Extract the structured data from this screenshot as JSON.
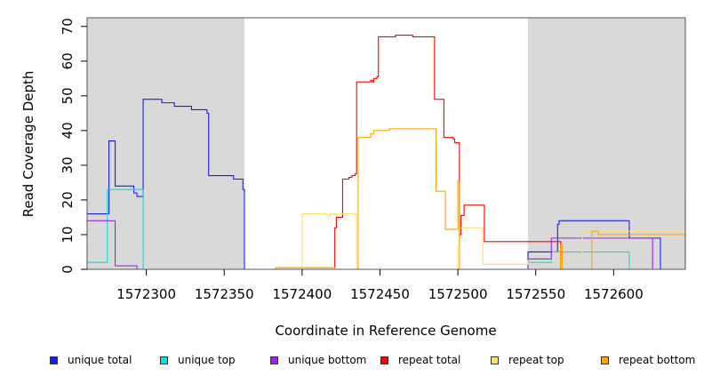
{
  "chart_data": {
    "type": "line",
    "title": "",
    "xlabel": "Coordinate in Reference Genome",
    "ylabel": "Read Coverage Depth",
    "xlim": [
      1572262,
      1572646
    ],
    "ylim": [
      0,
      72.5
    ],
    "x_ticks": [
      1572300,
      1572350,
      1572400,
      1572450,
      1572500,
      1572550,
      1572600
    ],
    "y_ticks": [
      0,
      10,
      20,
      30,
      40,
      50,
      60,
      70
    ],
    "shaded_regions": [
      [
        1572262,
        1572363
      ],
      [
        1572545,
        1572646
      ]
    ],
    "grid": false,
    "legend_position": "bottom",
    "series": [
      {
        "name": "unique total",
        "color": "#1a1aff",
        "points": [
          [
            1572262,
            16
          ],
          [
            1572276,
            16
          ],
          [
            1572276,
            37
          ],
          [
            1572280,
            37
          ],
          [
            1572280,
            24
          ],
          [
            1572292,
            24
          ],
          [
            1572292,
            22
          ],
          [
            1572294,
            22
          ],
          [
            1572294,
            21
          ],
          [
            1572298,
            21
          ],
          [
            1572298,
            49
          ],
          [
            1572310,
            49
          ],
          [
            1572310,
            48
          ],
          [
            1572318,
            48
          ],
          [
            1572318,
            47
          ],
          [
            1572329,
            47
          ],
          [
            1572329,
            46
          ],
          [
            1572339,
            46
          ],
          [
            1572339,
            45
          ],
          [
            1572340,
            45
          ],
          [
            1572340,
            27
          ],
          [
            1572356,
            27
          ],
          [
            1572356,
            26
          ],
          [
            1572362,
            26
          ],
          [
            1572362,
            23
          ],
          [
            1572363,
            23
          ],
          [
            1572363,
            0
          ],
          [
            1572545,
            0
          ],
          [
            1572545,
            5
          ],
          [
            1572564,
            5
          ],
          [
            1572564,
            13
          ],
          [
            1572565,
            13
          ],
          [
            1572565,
            14
          ],
          [
            1572610,
            14
          ],
          [
            1572610,
            9
          ],
          [
            1572630,
            9
          ],
          [
            1572630,
            0
          ],
          [
            1572646,
            0
          ]
        ]
      },
      {
        "name": "unique top",
        "color": "#00e0e0",
        "points": [
          [
            1572262,
            2
          ],
          [
            1572275,
            2
          ],
          [
            1572275,
            23
          ],
          [
            1572298,
            23
          ],
          [
            1572298,
            0
          ],
          [
            1572363,
            0
          ],
          [
            1572545,
            0
          ],
          [
            1572545,
            2
          ],
          [
            1572560,
            2
          ],
          [
            1572560,
            5
          ],
          [
            1572610,
            5
          ],
          [
            1572610,
            0
          ],
          [
            1572646,
            0
          ]
        ]
      },
      {
        "name": "unique bottom",
        "color": "#a020f0",
        "points": [
          [
            1572262,
            14
          ],
          [
            1572280,
            14
          ],
          [
            1572280,
            1
          ],
          [
            1572294,
            1
          ],
          [
            1572294,
            0
          ],
          [
            1572365,
            0
          ],
          [
            1572545,
            0
          ],
          [
            1572545,
            3
          ],
          [
            1572560,
            3
          ],
          [
            1572560,
            9
          ],
          [
            1572625,
            9
          ],
          [
            1572625,
            0
          ],
          [
            1572646,
            0
          ]
        ]
      },
      {
        "name": "repeat total",
        "color": "#ff0000",
        "points": [
          [
            1572383,
            0
          ],
          [
            1572383,
            0.5
          ],
          [
            1572421,
            0.5
          ],
          [
            1572421,
            12
          ],
          [
            1572422,
            12
          ],
          [
            1572422,
            15
          ],
          [
            1572426,
            15
          ],
          [
            1572426,
            26
          ],
          [
            1572430,
            26
          ],
          [
            1572430,
            26.5
          ],
          [
            1572432,
            26.5
          ],
          [
            1572432,
            27
          ],
          [
            1572434,
            27
          ],
          [
            1572434,
            27.5
          ],
          [
            1572435,
            27.5
          ],
          [
            1572435,
            54
          ],
          [
            1572444,
            54
          ],
          [
            1572444,
            54.5
          ],
          [
            1572445,
            54.5
          ],
          [
            1572445,
            54
          ],
          [
            1572446,
            54
          ],
          [
            1572446,
            55
          ],
          [
            1572448,
            55
          ],
          [
            1572448,
            55.5
          ],
          [
            1572449,
            55.5
          ],
          [
            1572449,
            67
          ],
          [
            1572460,
            67
          ],
          [
            1572460,
            67.5
          ],
          [
            1572471,
            67.5
          ],
          [
            1572471,
            67
          ],
          [
            1572485,
            67
          ],
          [
            1572485,
            49
          ],
          [
            1572491,
            49
          ],
          [
            1572491,
            38
          ],
          [
            1572497,
            38
          ],
          [
            1572497,
            37.5
          ],
          [
            1572498,
            37.5
          ],
          [
            1572498,
            36.5
          ],
          [
            1572501,
            36.5
          ],
          [
            1572501,
            10
          ],
          [
            1572502,
            10
          ],
          [
            1572502,
            15.5
          ],
          [
            1572504,
            15.5
          ],
          [
            1572504,
            18.5
          ],
          [
            1572517,
            18.5
          ],
          [
            1572517,
            8
          ],
          [
            1572566,
            8
          ],
          [
            1572566,
            0
          ],
          [
            1572646,
            0
          ],
          [
            1572646,
            21
          ]
        ]
      },
      {
        "name": "repeat top",
        "color": "#ffe066",
        "points": [
          [
            1572400,
            0
          ],
          [
            1572400,
            16
          ],
          [
            1572416,
            16
          ],
          [
            1572416,
            15.5
          ],
          [
            1572418,
            15.5
          ],
          [
            1572418,
            16
          ],
          [
            1572435,
            16
          ],
          [
            1572435,
            0.5
          ],
          [
            1572436,
            0.5
          ],
          [
            1572436,
            0
          ],
          [
            1572500,
            0
          ],
          [
            1572500,
            6.5
          ],
          [
            1572501,
            6.5
          ],
          [
            1572501,
            12
          ],
          [
            1572516,
            12
          ],
          [
            1572516,
            1.5
          ],
          [
            1572545,
            1.5
          ],
          [
            1572545,
            2.5
          ],
          [
            1572580,
            2.5
          ],
          [
            1572580,
            11
          ],
          [
            1572646,
            11
          ]
        ]
      },
      {
        "name": "repeat bottom",
        "color": "#ffa500",
        "points": [
          [
            1572383,
            0
          ],
          [
            1572383,
            0.5
          ],
          [
            1572421,
            0.5
          ],
          [
            1572421,
            0
          ],
          [
            1572436,
            0
          ],
          [
            1572436,
            38
          ],
          [
            1572444,
            38
          ],
          [
            1572444,
            39
          ],
          [
            1572446,
            39
          ],
          [
            1572446,
            40
          ],
          [
            1572456,
            40
          ],
          [
            1572456,
            40.5
          ],
          [
            1572486,
            40.5
          ],
          [
            1572486,
            22.5
          ],
          [
            1572492,
            22.5
          ],
          [
            1572492,
            11.5
          ],
          [
            1572500,
            11.5
          ],
          [
            1572500,
            25.5
          ],
          [
            1572501,
            25.5
          ],
          [
            1572501,
            0
          ],
          [
            1572566,
            0
          ],
          [
            1572566,
            7
          ],
          [
            1572567,
            7
          ],
          [
            1572567,
            0
          ],
          [
            1572586,
            0
          ],
          [
            1572586,
            11
          ],
          [
            1572590,
            11
          ],
          [
            1572590,
            10
          ],
          [
            1572646,
            10
          ],
          [
            1572646,
            9
          ]
        ]
      }
    ]
  }
}
